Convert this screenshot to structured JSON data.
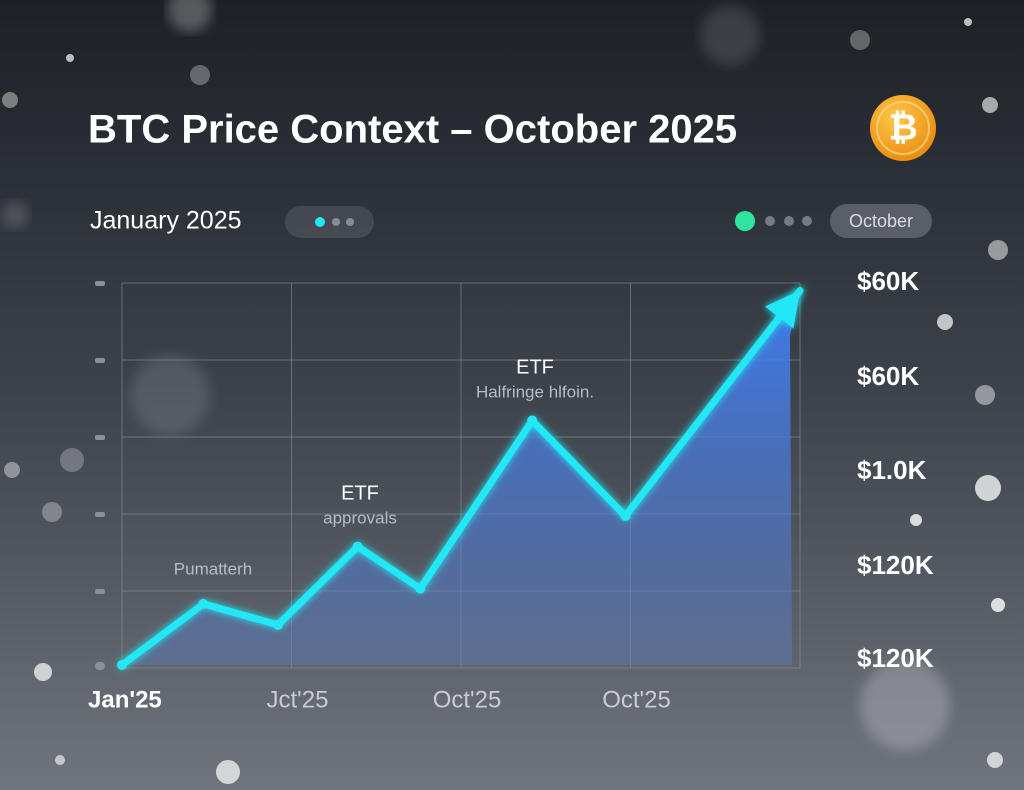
{
  "chart_data": {
    "type": "line",
    "title": "BTC Price Context – October 2025",
    "start_label": "January 2025",
    "end_label": "October",
    "x": [
      0,
      0.48,
      0.92,
      1.39,
      1.76,
      2.42,
      2.97,
      4.0
    ],
    "xlim": [
      0,
      4
    ],
    "xticks": [
      {
        "value": 0,
        "label": "Jan'25"
      },
      {
        "value": 1,
        "label": "Jct'25"
      },
      {
        "value": 2,
        "label": "Oct'25"
      },
      {
        "value": 3,
        "label": "Oct'25"
      }
    ],
    "ylim": [
      0,
      100
    ],
    "series": [
      {
        "name": "BTC",
        "color": "#22e8f6",
        "values": [
          0,
          16,
          10.5,
          31,
          20,
          64,
          39,
          98
        ]
      }
    ],
    "right_axis_labels": [
      "$60K",
      "$60K",
      "$1.0K",
      "$120K",
      "$120K"
    ],
    "annotations": [
      {
        "title": "",
        "text": "Pumatterh"
      },
      {
        "title": "ETF",
        "text": "approvals"
      },
      {
        "title": "ETF",
        "text": "Halfringe hlfoin."
      }
    ]
  }
}
